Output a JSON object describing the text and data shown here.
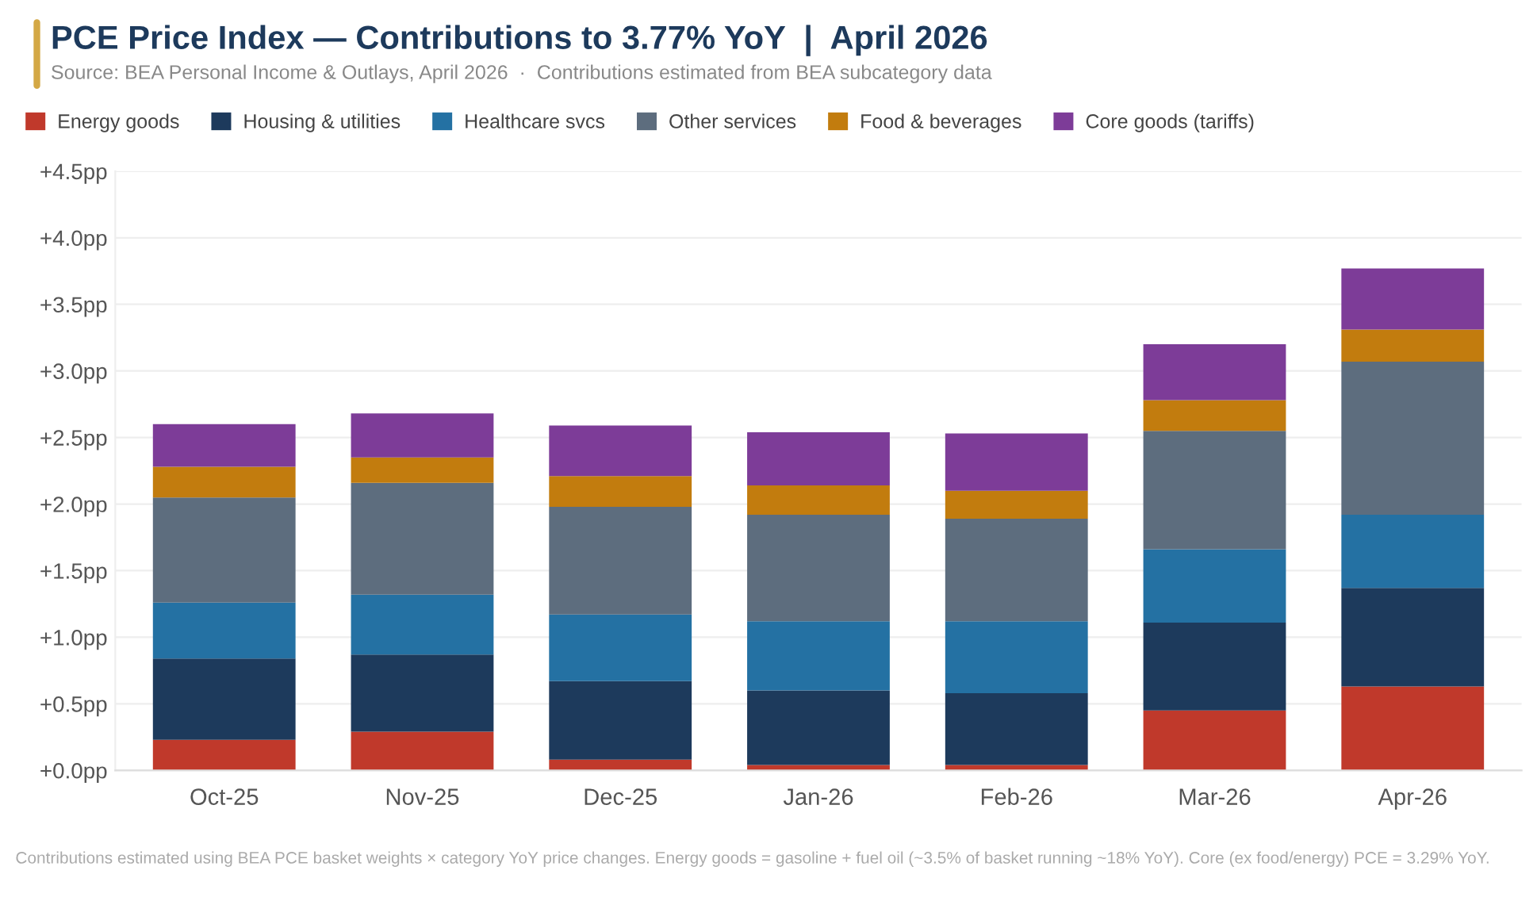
{
  "chart_data": {
    "type": "bar",
    "stacked": true,
    "title": "PCE Price Index — Contributions to 3.77% YoY  |  April 2026",
    "subtitle": "Source: BEA Personal Income & Outlays, April 2026  ·  Contributions estimated from BEA subcategory data",
    "annotations": [
      "Contributions estimated using BEA PCE basket weights × category YoY price changes. Energy goods = gasoline + fuel oil (~3.5% of basket running ~18% YoY). Core (ex food/energy) PCE = 3.29% YoY."
    ],
    "categories": [
      "Oct-25",
      "Nov-25",
      "Dec-25",
      "Jan-26",
      "Feb-26",
      "Mar-26",
      "Apr-26"
    ],
    "series": [
      {
        "name": "Energy goods",
        "color": "#c0392b",
        "values": [
          0.23,
          0.29,
          0.08,
          0.04,
          0.04,
          0.45,
          0.63
        ]
      },
      {
        "name": "Housing & utilities",
        "color": "#1d3a5c",
        "values": [
          0.61,
          0.58,
          0.59,
          0.56,
          0.54,
          0.66,
          0.74
        ]
      },
      {
        "name": "Healthcare svcs",
        "color": "#2471a3",
        "values": [
          0.42,
          0.45,
          0.5,
          0.52,
          0.54,
          0.55,
          0.55
        ]
      },
      {
        "name": "Other services",
        "color": "#5d6d7e",
        "values": [
          0.79,
          0.84,
          0.81,
          0.8,
          0.77,
          0.89,
          1.15
        ]
      },
      {
        "name": "Food & beverages",
        "color": "#c27c0e",
        "values": [
          0.23,
          0.19,
          0.23,
          0.22,
          0.21,
          0.23,
          0.24
        ]
      },
      {
        "name": "Core goods (tariffs)",
        "color": "#7d3c98",
        "values": [
          0.32,
          0.33,
          0.38,
          0.4,
          0.43,
          0.42,
          0.46
        ]
      }
    ],
    "ylim": [
      0,
      4.5
    ],
    "yticks": [
      {
        "value": 0,
        "label": "+0.0pp"
      },
      {
        "value": 0.5,
        "label": "+0.5pp"
      },
      {
        "value": 1.0,
        "label": "+1.0pp"
      },
      {
        "value": 1.5,
        "label": "+1.5pp"
      },
      {
        "value": 2.0,
        "label": "+2.0pp"
      },
      {
        "value": 2.5,
        "label": "+2.5pp"
      },
      {
        "value": 3.0,
        "label": "+3.0pp"
      },
      {
        "value": 3.5,
        "label": "+3.5pp"
      },
      {
        "value": 4.0,
        "label": "+4.0pp"
      },
      {
        "value": 4.5,
        "label": "+4.5pp"
      }
    ],
    "grid": "y",
    "legend": "top left"
  }
}
